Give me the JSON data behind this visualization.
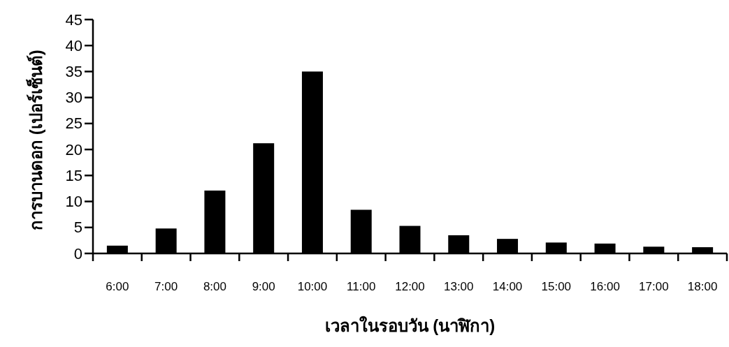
{
  "chart_data": {
    "type": "bar",
    "xlabel": "เวลาในรอบวัน (นาฬิกา)",
    "ylabel": "การบานดอก (เปอร์เซ็นต์)",
    "categories": [
      "6:00",
      "7:00",
      "8:00",
      "9:00",
      "10:00",
      "11:00",
      "12:00",
      "13:00",
      "14:00",
      "15:00",
      "16:00",
      "17:00",
      "18:00"
    ],
    "values": [
      1.5,
      4.8,
      12.1,
      21.2,
      35.0,
      8.4,
      5.3,
      3.5,
      2.8,
      2.1,
      1.9,
      1.3,
      1.2
    ],
    "color": "#000000",
    "ylim": [
      0,
      45
    ],
    "yticks": [
      0,
      5,
      10,
      15,
      20,
      25,
      30,
      35,
      40,
      45
    ],
    "grid": false
  }
}
